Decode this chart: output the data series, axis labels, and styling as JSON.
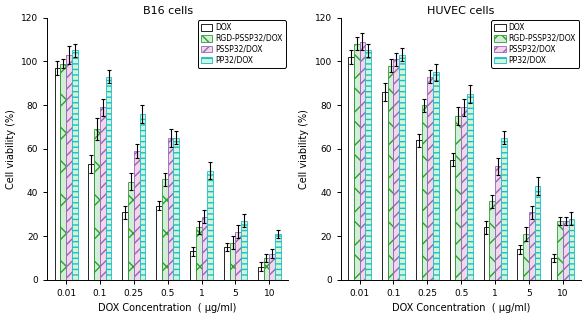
{
  "b16": {
    "title": "B16 cells",
    "concentrations": [
      "0.01",
      "0.1",
      "0.25",
      "0.5",
      "1",
      "5",
      "10"
    ],
    "DOX": [
      97,
      53,
      31,
      34,
      13,
      15,
      6
    ],
    "DOX_err": [
      3,
      4,
      3,
      2,
      2,
      2,
      2
    ],
    "RGD": [
      99,
      69,
      45,
      46,
      24,
      17,
      10
    ],
    "RGD_err": [
      2,
      5,
      4,
      3,
      3,
      3,
      2
    ],
    "PSSP32": [
      103,
      79,
      59,
      65,
      29,
      22,
      12
    ],
    "PSSP32_err": [
      4,
      4,
      3,
      4,
      3,
      3,
      2
    ],
    "PP32": [
      105,
      93,
      76,
      65,
      50,
      27,
      21
    ],
    "PP32_err": [
      3,
      3,
      4,
      3,
      4,
      3,
      2
    ]
  },
  "huvec": {
    "title": "HUVEC cells",
    "concentrations": [
      "0.01",
      "0.1",
      "0.25",
      "0.5",
      "1",
      "5",
      "10"
    ],
    "DOX": [
      102,
      86,
      64,
      55,
      24,
      14,
      10
    ],
    "DOX_err": [
      3,
      4,
      3,
      3,
      3,
      2,
      2
    ],
    "RGD": [
      108,
      98,
      80,
      75,
      36,
      21,
      27
    ],
    "RGD_err": [
      3,
      3,
      3,
      4,
      3,
      3,
      2
    ],
    "PSSP32": [
      109,
      101,
      93,
      79,
      52,
      31,
      27
    ],
    "PSSP32_err": [
      4,
      3,
      3,
      4,
      4,
      3,
      2
    ],
    "PP32": [
      105,
      103,
      95,
      85,
      65,
      43,
      28
    ],
    "PP32_err": [
      3,
      3,
      4,
      4,
      3,
      4,
      3
    ]
  },
  "legend_labels": [
    "DOX",
    "RGD-PSSP32/DOX",
    "PSSP32/DOX",
    "PP32/DOX"
  ],
  "xlabel": "DOX Concentration  ( μg/ml)",
  "ylabel": "Cell viability (%)",
  "ylim": [
    0,
    120
  ],
  "yticks": [
    0,
    20,
    40,
    60,
    80,
    100,
    120
  ],
  "bar_width": 0.17,
  "facecolors": [
    "white",
    "#d4edda",
    "#f5d5e8",
    "#d4f5d4"
  ],
  "hatches": [
    "",
    "x",
    "///",
    "---"
  ],
  "hatch_colors": [
    "black",
    "#2ca02c",
    "#9467bd",
    "#17becf"
  ],
  "edgecolor": "black"
}
